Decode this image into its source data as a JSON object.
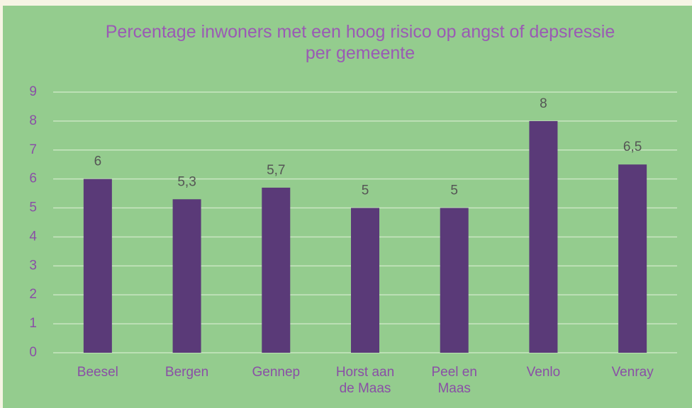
{
  "chart_data": {
    "type": "bar",
    "title": "Percentage inwoners met een hoog risico op angst of depsressie per gemeente",
    "categories": [
      "Beesel",
      "Bergen",
      "Gennep",
      "Horst aan de Maas",
      "Peel en Maas",
      "Venlo",
      "Venray"
    ],
    "values": [
      6,
      5.3,
      5.7,
      5,
      5,
      8,
      6.5
    ],
    "value_labels": [
      "6",
      "5,3",
      "5,7",
      "5",
      "5",
      "8",
      "6,5"
    ],
    "color": "#5a3a78",
    "ylim": [
      0,
      9
    ],
    "yticks": [
      0,
      1,
      2,
      3,
      4,
      5,
      6,
      7,
      8,
      9
    ],
    "grid": true
  }
}
